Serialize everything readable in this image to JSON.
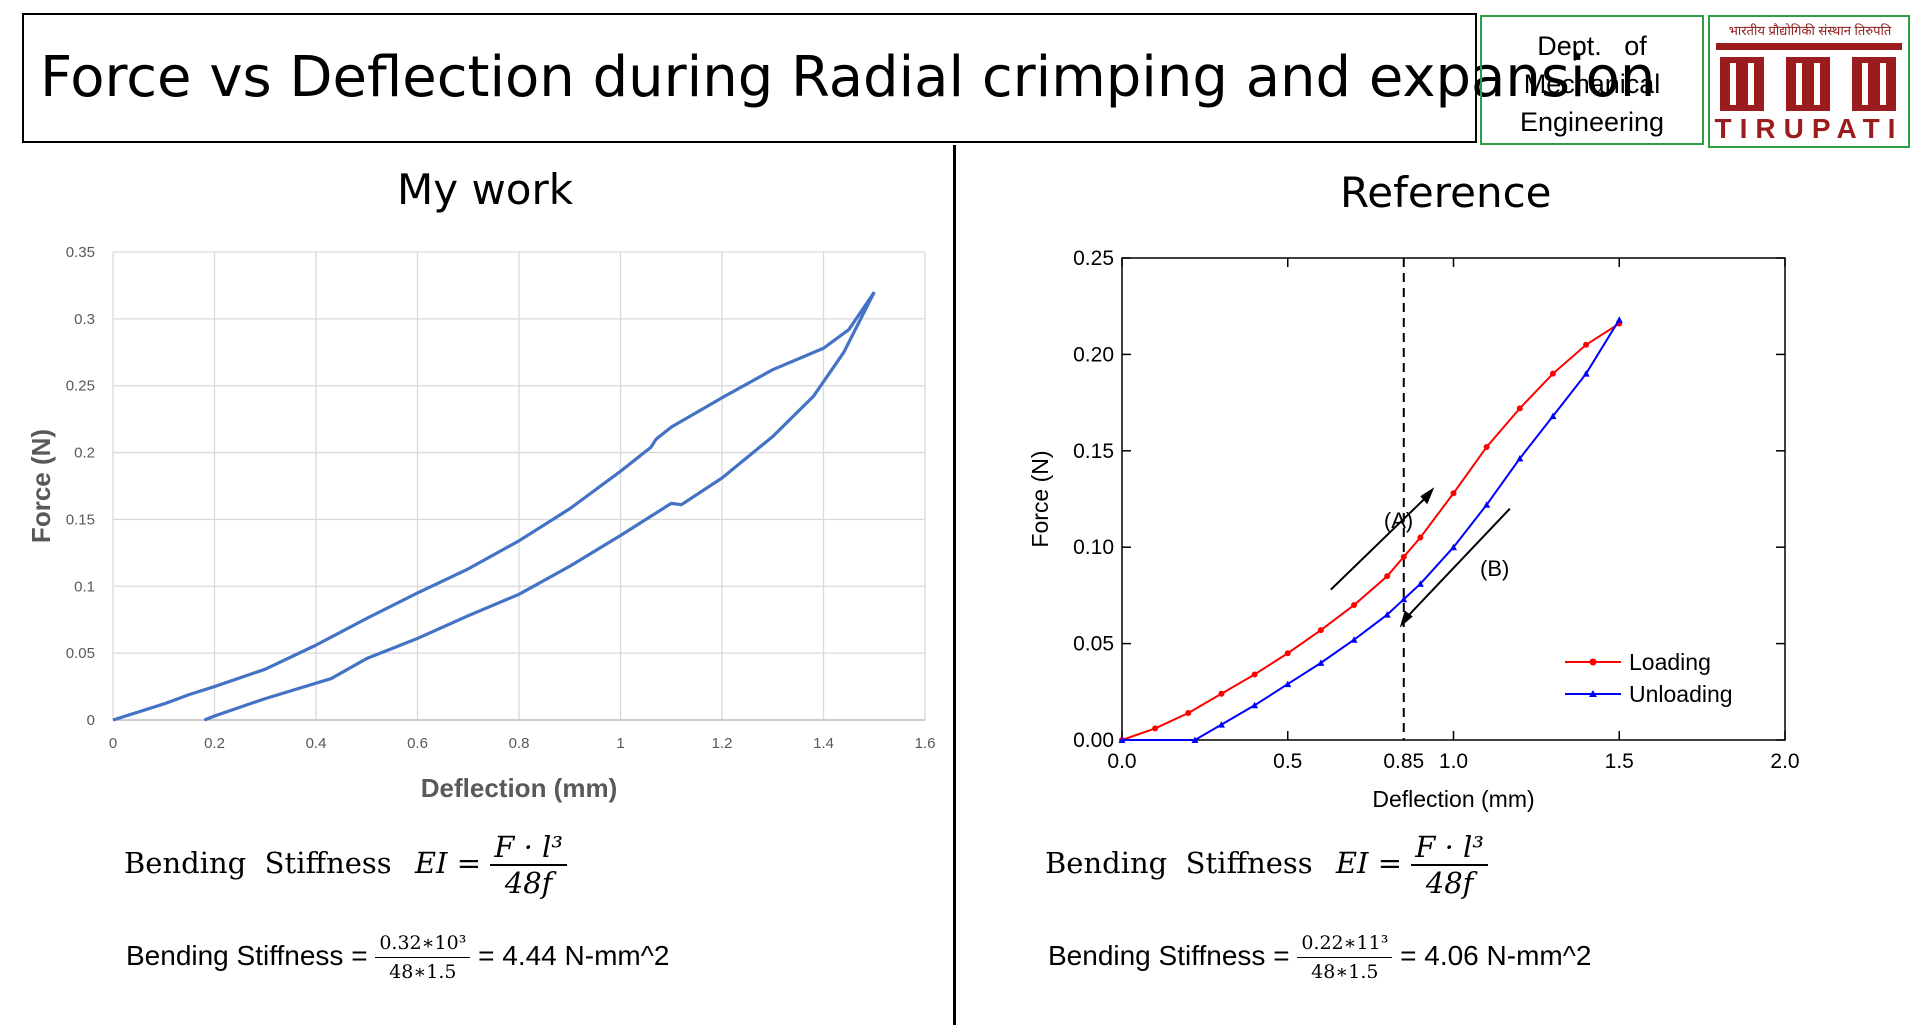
{
  "header": {
    "title": "Force vs Deflection during Radial crimping and expansion",
    "dept_lines": [
      "Dept.   of",
      "Mechanical",
      "Engineering"
    ],
    "logo_hindi": "भारतीय प्रौद्योगिकी संस्थान तिरुपति",
    "logo_name": "TIRUPATI"
  },
  "left": {
    "title": "My work",
    "formula": {
      "label": "Bending  Stiffness",
      "lhs": "EI",
      "num": "F · l³",
      "den": "48f"
    },
    "calc": {
      "prefix": "Bending Stiffness = ",
      "num": "0.32∗10³",
      "den": "48∗1.5",
      "result": " = 4.44 N-mm^2"
    }
  },
  "right": {
    "title": "Reference",
    "formula": {
      "label": "Bending  Stiffness",
      "lhs": "EI",
      "num": "F · l³",
      "den": "48f"
    },
    "calc": {
      "prefix": "Bending Stiffness = ",
      "num": "0.22∗11³",
      "den": "48∗1.5",
      "result": " = 4.06 N-mm^2"
    }
  },
  "colors": {
    "my_curve": "#4472c4",
    "loading": "#ff0000",
    "unloading": "#0000ff",
    "accent": "#2e9e44"
  },
  "chart_data": [
    {
      "type": "line",
      "title": "My work",
      "xlabel": "Deflection (mm)",
      "ylabel": "Force (N)",
      "xlim": [
        0,
        1.6
      ],
      "ylim": [
        0,
        0.35
      ],
      "xticks": [
        0,
        0.2,
        0.4,
        0.6,
        0.8,
        1,
        1.2,
        1.4,
        1.6
      ],
      "yticks": [
        0,
        0.05,
        0.1,
        0.15,
        0.2,
        0.25,
        0.3,
        0.35
      ],
      "grid": true,
      "series": [
        {
          "x": [
            0,
            0.05,
            0.1,
            0.15,
            0.2,
            0.3,
            0.4,
            0.5,
            0.6,
            0.7,
            0.8,
            0.9,
            1.0,
            1.06,
            1.07,
            1.1,
            1.2,
            1.3,
            1.4,
            1.45,
            1.5
          ],
          "y": [
            0,
            0.006,
            0.012,
            0.019,
            0.025,
            0.038,
            0.056,
            0.076,
            0.095,
            0.113,
            0.134,
            0.158,
            0.186,
            0.204,
            0.21,
            0.219,
            0.241,
            0.262,
            0.278,
            0.292,
            0.32
          ]
        },
        {
          "x": [
            0.18,
            0.2,
            0.3,
            0.43,
            0.5,
            0.6,
            0.7,
            0.8,
            0.9,
            1.0,
            1.1,
            1.12,
            1.2,
            1.3,
            1.38,
            1.44,
            1.5
          ],
          "y": [
            0,
            0.003,
            0.016,
            0.031,
            0.046,
            0.061,
            0.078,
            0.094,
            0.115,
            0.138,
            0.162,
            0.161,
            0.181,
            0.212,
            0.242,
            0.275,
            0.32
          ]
        }
      ]
    },
    {
      "type": "line",
      "title": "Reference",
      "xlabel": "Deflection (mm)",
      "ylabel": "Force (N)",
      "xlim": [
        0,
        2.0
      ],
      "ylim": [
        0,
        0.25
      ],
      "xticks": [
        "0.0",
        "0.5",
        "1.0",
        "1.5",
        "2.0"
      ],
      "yticks": [
        "0.00",
        "0.05",
        "0.10",
        "0.15",
        "0.20",
        "0.25"
      ],
      "grid": false,
      "legend_position": "bottom-right",
      "annotations": [
        "(A)",
        "(B)",
        "0.85"
      ],
      "vline": 0.85,
      "series": [
        {
          "name": "Loading",
          "x": [
            0.0,
            0.1,
            0.2,
            0.3,
            0.4,
            0.5,
            0.6,
            0.7,
            0.8,
            0.85,
            0.9,
            1.0,
            1.1,
            1.2,
            1.3,
            1.4,
            1.5
          ],
          "y": [
            0.0,
            0.006,
            0.014,
            0.024,
            0.034,
            0.045,
            0.057,
            0.07,
            0.085,
            0.095,
            0.105,
            0.128,
            0.152,
            0.172,
            0.19,
            0.205,
            0.216
          ]
        },
        {
          "name": "Unloading",
          "x": [
            0.0,
            0.22,
            0.3,
            0.4,
            0.5,
            0.6,
            0.7,
            0.8,
            0.85,
            0.9,
            1.0,
            1.1,
            1.2,
            1.3,
            1.4,
            1.5
          ],
          "y": [
            0.0,
            0.0,
            0.008,
            0.018,
            0.029,
            0.04,
            0.052,
            0.065,
            0.073,
            0.081,
            0.1,
            0.122,
            0.146,
            0.168,
            0.19,
            0.218
          ]
        }
      ]
    }
  ]
}
